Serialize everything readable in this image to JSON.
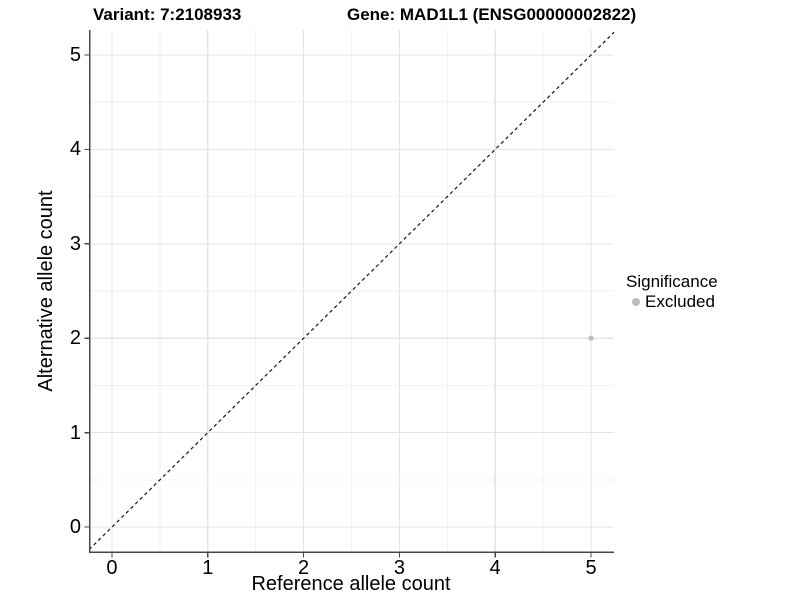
{
  "figure": {
    "title_left": "Variant: 7:2108933",
    "title_right": "Gene: MAD1L1 (ENSG00000002822)"
  },
  "legend": {
    "title": "Significance",
    "items": [
      {
        "label": "Excluded",
        "color": "#bdbdbd"
      }
    ]
  },
  "chart_data": {
    "type": "scatter",
    "title": "Variant: 7:2108933 | Gene: MAD1L1 (ENSG00000002822)",
    "xlabel": "Reference allele count",
    "ylabel": "Alternative allele count",
    "xlim": [
      -0.24,
      5.24
    ],
    "ylim": [
      -0.275,
      5.265
    ],
    "x_ticks": [
      0,
      1,
      2,
      3,
      4,
      5
    ],
    "y_ticks": [
      0,
      1,
      2,
      3,
      4,
      5
    ],
    "grid": {
      "major": true,
      "minor": true,
      "major_color": "#e4e4e4",
      "minor_color": "#f1f1f1"
    },
    "identity_line": {
      "slope": 1,
      "intercept": 0,
      "style": "dashed",
      "color": "#161616"
    },
    "series": [
      {
        "name": "Excluded",
        "color": "#bdbdbd",
        "points": [
          {
            "x": 5,
            "y": 2
          }
        ]
      }
    ],
    "point_radius": 2.6,
    "legend_position": "right"
  },
  "colors": {
    "axis_line": "#474747",
    "tick_mark": "#474747",
    "text": "#000000",
    "background": "#ffffff"
  }
}
